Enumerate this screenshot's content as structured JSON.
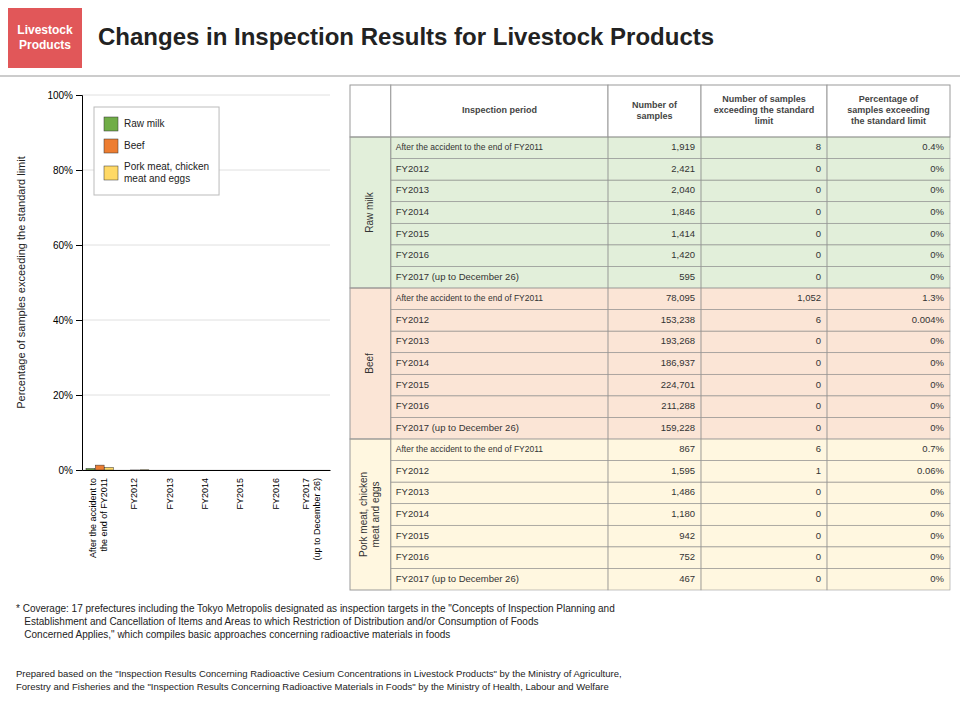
{
  "chart_data": {
    "type": "bar",
    "title": "Changes in Inspection Results for Livestock Products",
    "ylabel": "Percentage of samples exceeding the standard limit",
    "categories": [
      "After the accident to\nthe end of FY2011",
      "FY2012",
      "FY2013",
      "FY2014",
      "FY2015",
      "FY2016",
      "FY2017\n(up to December 26)"
    ],
    "series": [
      {
        "name": "Raw milk",
        "color": "#70AD47",
        "values": [
          0.4,
          0.0,
          0.0,
          0.0,
          0.0,
          0.0,
          0.0
        ]
      },
      {
        "name": "Beef",
        "color": "#ED7D31",
        "values": [
          1.3,
          0.004,
          0.0,
          0.0,
          0.0,
          0.0,
          0.0
        ]
      },
      {
        "name": "Pork meat, chicken\nmeat and eggs",
        "color": "#FFD966",
        "values": [
          0.7,
          0.06,
          0.0,
          0.0,
          0.0,
          0.0,
          0.0
        ]
      }
    ],
    "ylim": [
      0,
      100
    ],
    "yticks": [
      {
        "value": 0,
        "label": "0%"
      },
      {
        "value": 20,
        "label": "20%"
      },
      {
        "value": 40,
        "label": "40%"
      },
      {
        "value": 60,
        "label": "60%"
      },
      {
        "value": 80,
        "label": "80%"
      },
      {
        "value": 100,
        "label": "100%"
      }
    ],
    "grid": true,
    "legend": "upper left",
    "annotations": [
      "Livestock\nProducts",
      "* Coverage: 17 prefectures including the Tokyo Metropolis designated as inspection targets in the \"Concepts of Inspection Planning and\n   Establishment and Cancellation of Items and Areas to which Restriction of Distribution and/or Consumption of Foods\n   Concerned Applies,\" which compiles basic approaches concerning radioactive materials in foods",
      "Prepared based on the \"Inspection Results Concerning Radioactive Cesium Concentrations in Livestock Products\" by the Ministry of Agriculture,\nForestry and Fisheries and the \"Inspection Results Concerning Radioactive Materials in Foods\" by the Ministry of Health, Labour and Welfare"
    ],
    "table": {
      "columns": [
        "Inspection period",
        "Number of\nsamples",
        "Number of samples\nexceeding the standard\nlimit",
        "Percentage of\nsamples exceeding\nthe standard limit"
      ],
      "groups": [
        {
          "name": "Raw milk",
          "rows": [
            [
              "After the accident to the end of FY2011",
              "1,919",
              "8",
              "0.4%"
            ],
            [
              "FY2012",
              "2,421",
              "0",
              "0%"
            ],
            [
              "FY2013",
              "2,040",
              "0",
              "0%"
            ],
            [
              "FY2014",
              "1,846",
              "0",
              "0%"
            ],
            [
              "FY2015",
              "1,414",
              "0",
              "0%"
            ],
            [
              "FY2016",
              "1,420",
              "0",
              "0%"
            ],
            [
              "FY2017 (up to December 26)",
              "595",
              "0",
              "0%"
            ]
          ]
        },
        {
          "name": "Beef",
          "rows": [
            [
              "After the accident to the end of FY2011",
              "78,095",
              "1,052",
              "1.3%"
            ],
            [
              "FY2012",
              "153,238",
              "6",
              "0.004%"
            ],
            [
              "FY2013",
              "193,268",
              "0",
              "0%"
            ],
            [
              "FY2014",
              "186,937",
              "0",
              "0%"
            ],
            [
              "FY2015",
              "224,701",
              "0",
              "0%"
            ],
            [
              "FY2016",
              "211,288",
              "0",
              "0%"
            ],
            [
              "FY2017 (up to December 26)",
              "159,228",
              "0",
              "0%"
            ]
          ]
        },
        {
          "name": "Pork meat, chicken\nmeat and eggs",
          "rows": [
            [
              "After the accident to the end of FY2011",
              "867",
              "6",
              "0.7%"
            ],
            [
              "FY2012",
              "1,595",
              "1",
              "0.06%"
            ],
            [
              "FY2013",
              "1,486",
              "0",
              "0%"
            ],
            [
              "FY2014",
              "1,180",
              "0",
              "0%"
            ],
            [
              "FY2015",
              "942",
              "0",
              "0%"
            ],
            [
              "FY2016",
              "752",
              "0",
              "0%"
            ],
            [
              "FY2017 (up to December 26)",
              "467",
              "0",
              "0%"
            ]
          ]
        }
      ]
    }
  }
}
